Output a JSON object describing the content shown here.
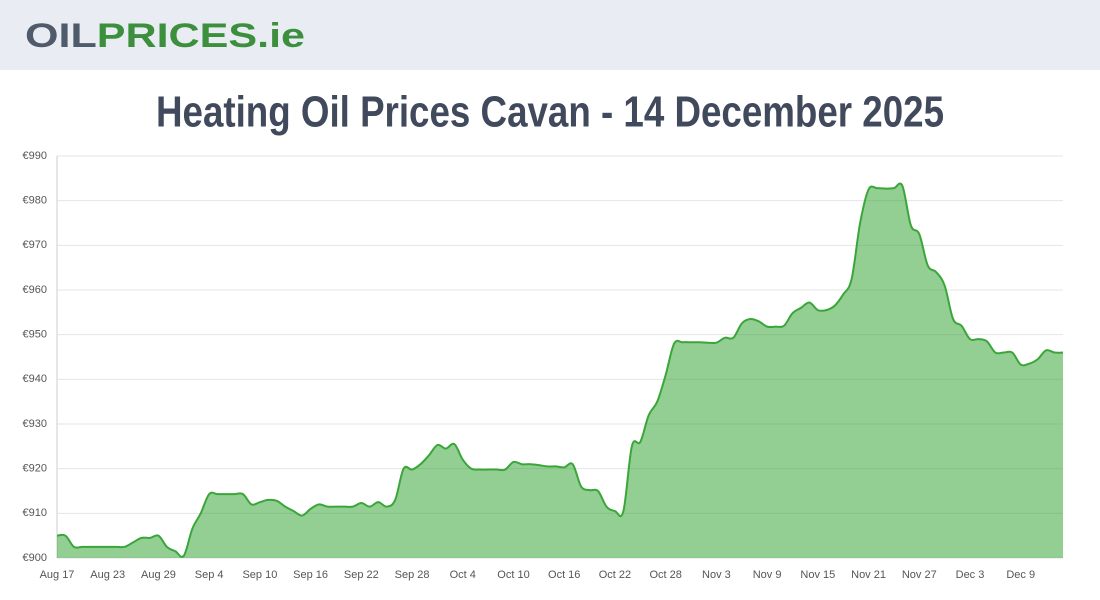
{
  "header": {
    "logo": [
      "OIL",
      "PRICES.ie"
    ]
  },
  "chart_data": {
    "type": "area",
    "title": "Heating Oil Prices Cavan - 14 December 2025",
    "categories": [
      "Aug 17",
      null,
      null,
      null,
      null,
      null,
      "Aug 23",
      null,
      null,
      null,
      null,
      null,
      "Aug 29",
      null,
      null,
      null,
      null,
      null,
      "Sep 4",
      null,
      null,
      null,
      null,
      null,
      "Sep 10",
      null,
      null,
      null,
      null,
      null,
      "Sep 16",
      null,
      null,
      null,
      null,
      null,
      "Sep 22",
      null,
      null,
      null,
      null,
      null,
      "Sep 28",
      null,
      null,
      null,
      null,
      null,
      "Oct 4",
      null,
      null,
      null,
      null,
      null,
      "Oct 10",
      null,
      null,
      null,
      null,
      null,
      "Oct 16",
      null,
      null,
      null,
      null,
      null,
      "Oct 22",
      null,
      null,
      null,
      null,
      null,
      "Oct 28",
      null,
      null,
      null,
      null,
      null,
      "Nov 3",
      null,
      null,
      null,
      null,
      null,
      "Nov 9",
      null,
      null,
      null,
      null,
      null,
      "Nov 15",
      null,
      null,
      null,
      null,
      null,
      "Nov 21",
      null,
      null,
      null,
      null,
      null,
      "Nov 27",
      null,
      null,
      null,
      null,
      null,
      "Dec 3",
      null,
      null,
      null,
      null,
      null,
      "Dec 9",
      null,
      null,
      null,
      null,
      null
    ],
    "values": [
      905,
      905,
      902.5,
      902.5,
      902.5,
      902.5,
      902.5,
      902.5,
      902.5,
      903.5,
      904.5,
      904.5,
      905,
      902.5,
      901.5,
      900.5,
      906.5,
      910,
      914.3,
      914.3,
      914.3,
      914.3,
      914.3,
      912,
      912.5,
      913,
      912.8,
      911.5,
      910.5,
      909.5,
      911,
      912,
      911.5,
      911.5,
      911.5,
      911.5,
      912.3,
      911.5,
      912.5,
      911.5,
      913,
      920,
      919.8,
      921,
      923,
      925.3,
      924.5,
      925.5,
      922,
      920,
      919.8,
      919.8,
      919.8,
      919.8,
      921.5,
      921,
      921,
      920.8,
      920.5,
      920.5,
      920.3,
      921,
      916,
      915.2,
      915,
      911.5,
      910.5,
      910.5,
      925,
      926,
      932,
      935,
      941,
      948,
      948.3,
      948.3,
      948.3,
      948.2,
      948.2,
      949.3,
      949.3,
      952.5,
      953.5,
      953,
      951.8,
      951.8,
      952,
      954.8,
      956,
      957.2,
      955.5,
      955.5,
      956.5,
      959,
      962.5,
      975,
      982.5,
      982.8,
      982.7,
      982.8,
      983.3,
      974.5,
      972.5,
      965.5,
      964,
      961,
      953.5,
      952,
      949,
      949,
      948.5,
      946,
      946,
      946,
      943.3,
      943.5,
      944.5,
      946.5,
      946,
      946
    ],
    "color": "#3aa63a",
    "ylim": [
      900,
      990
    ],
    "yticks": [
      {
        "value": 900,
        "label": "€900"
      },
      {
        "value": 910,
        "label": "€910"
      },
      {
        "value": 920,
        "label": "€920"
      },
      {
        "value": 930,
        "label": "€930"
      },
      {
        "value": 940,
        "label": "€940"
      },
      {
        "value": 950,
        "label": "€950"
      },
      {
        "value": 960,
        "label": "€960"
      },
      {
        "value": 970,
        "label": "€970"
      },
      {
        "value": 980,
        "label": "€980"
      },
      {
        "value": 990,
        "label": "€990"
      }
    ],
    "grid": true
  }
}
